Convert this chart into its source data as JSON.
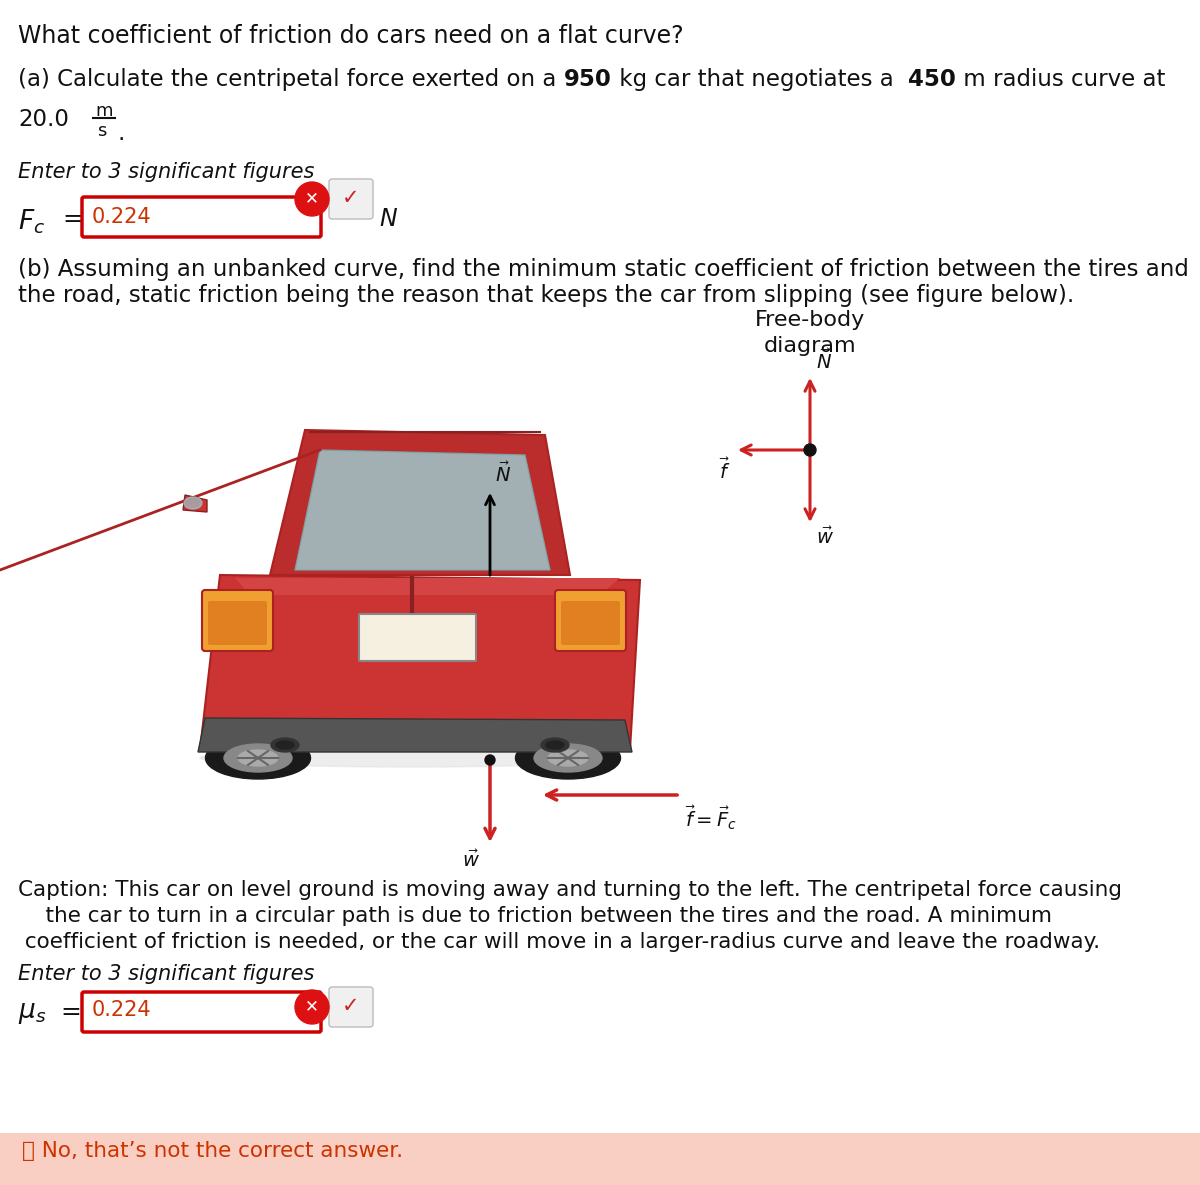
{
  "title": "What coefficient of friction do cars need on a flat curve?",
  "part_a_seg1": "(a) Calculate the centripetal force exerted on a ",
  "part_a_bold1": "950",
  "part_a_seg2": " kg car that negotiates a  ",
  "part_a_bold2": "450",
  "part_a_seg3": " m radius curve at",
  "part_a_speed": "20.0",
  "part_a_m": "m",
  "part_a_s": "s",
  "enter_sig_figs": "Enter to 3 significant figures",
  "fc_value": "0.224",
  "fc_unit": "N",
  "part_b_line1": "(b) Assuming an unbanked curve, find the minimum static coefficient of friction between the tires and",
  "part_b_line2": "the road, static friction being the reason that keeps the car from slipping (see figure below).",
  "freebody_title_1": "Free-body",
  "freebody_title_2": "diagram",
  "caption_line1": "Caption: This car on level ground is moving away and turning to the left. The centripetal force causing",
  "caption_line2": "    the car to turn in a circular path is due to friction between the tires and the road. A minimum",
  "caption_line3": " coefficient of friction is needed, or the car will move in a larger-radius curve and leave the roadway.",
  "mu_s_value": "0.224",
  "error_text": "❗ No, that’s not the correct answer.",
  "bg_color": "#ffffff",
  "error_bg_color": "#f9cfc4",
  "arrow_color": "#cc2222",
  "fbd_arrow_color": "#cc2222",
  "text_color": "#111111",
  "input_border": "#cc0000",
  "input_text": "#cc3300",
  "error_text_color": "#cc3300"
}
